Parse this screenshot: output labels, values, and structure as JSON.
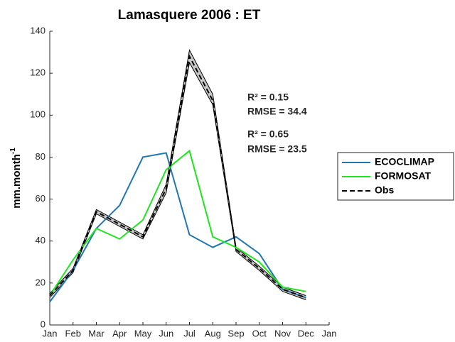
{
  "chart_data": {
    "type": "line",
    "title": "Lamasquere 2006 : ET",
    "ylabel": {
      "text": "mm.month",
      "superscript": "-1"
    },
    "x": [
      1,
      2,
      3,
      4,
      5,
      6,
      7,
      8,
      9,
      10,
      11,
      12
    ],
    "xlim": [
      1,
      13
    ],
    "xticks": [
      {
        "value": 1,
        "label": "Jan"
      },
      {
        "value": 2,
        "label": "Feb"
      },
      {
        "value": 3,
        "label": "Mar"
      },
      {
        "value": 4,
        "label": "Apr"
      },
      {
        "value": 5,
        "label": "May"
      },
      {
        "value": 6,
        "label": "Jun"
      },
      {
        "value": 7,
        "label": "Jul"
      },
      {
        "value": 8,
        "label": "Aug"
      },
      {
        "value": 9,
        "label": "Sep"
      },
      {
        "value": 10,
        "label": "Oct"
      },
      {
        "value": 11,
        "label": "Nov"
      },
      {
        "value": 12,
        "label": "Dec"
      },
      {
        "value": 13,
        "label": "Jan"
      }
    ],
    "ylim": [
      0,
      140
    ],
    "yticks": [
      0,
      20,
      40,
      60,
      80,
      100,
      120,
      140
    ],
    "grid": false,
    "legend": "right",
    "envelope": {
      "color": "#c8c8c8",
      "upper": [
        15,
        27,
        55,
        49,
        43,
        67,
        131,
        110,
        37,
        28,
        18,
        14
      ],
      "lower": [
        13,
        25,
        53,
        47,
        41,
        63,
        125,
        105,
        35,
        26,
        16,
        12
      ]
    },
    "series": [
      {
        "name": "ECOCLIMAP",
        "color": "#1f77b4",
        "dash": false,
        "values": [
          11,
          26,
          46,
          57,
          80,
          82,
          43,
          37,
          42,
          34,
          17,
          13
        ]
      },
      {
        "name": "FORMOSAT",
        "color": "#1ee61e",
        "dash": false,
        "values": [
          14,
          31,
          46,
          41,
          50,
          74,
          83,
          42,
          37,
          30,
          18,
          16
        ]
      },
      {
        "name": "Obs",
        "color": "#000000",
        "dash": true,
        "values": [
          14,
          26,
          54,
          48,
          42,
          65,
          128,
          107,
          36,
          27,
          17,
          13
        ]
      }
    ],
    "annotations": [
      {
        "text": "R² = 0.15",
        "color": "#0000ff"
      },
      {
        "text": "RMSE = 34.4",
        "color": "#0000ff"
      },
      {
        "text": "R² = 0.65",
        "color": "#1ee61e"
      },
      {
        "text": "RMSE = 23.5",
        "color": "#1ee61e"
      }
    ]
  }
}
